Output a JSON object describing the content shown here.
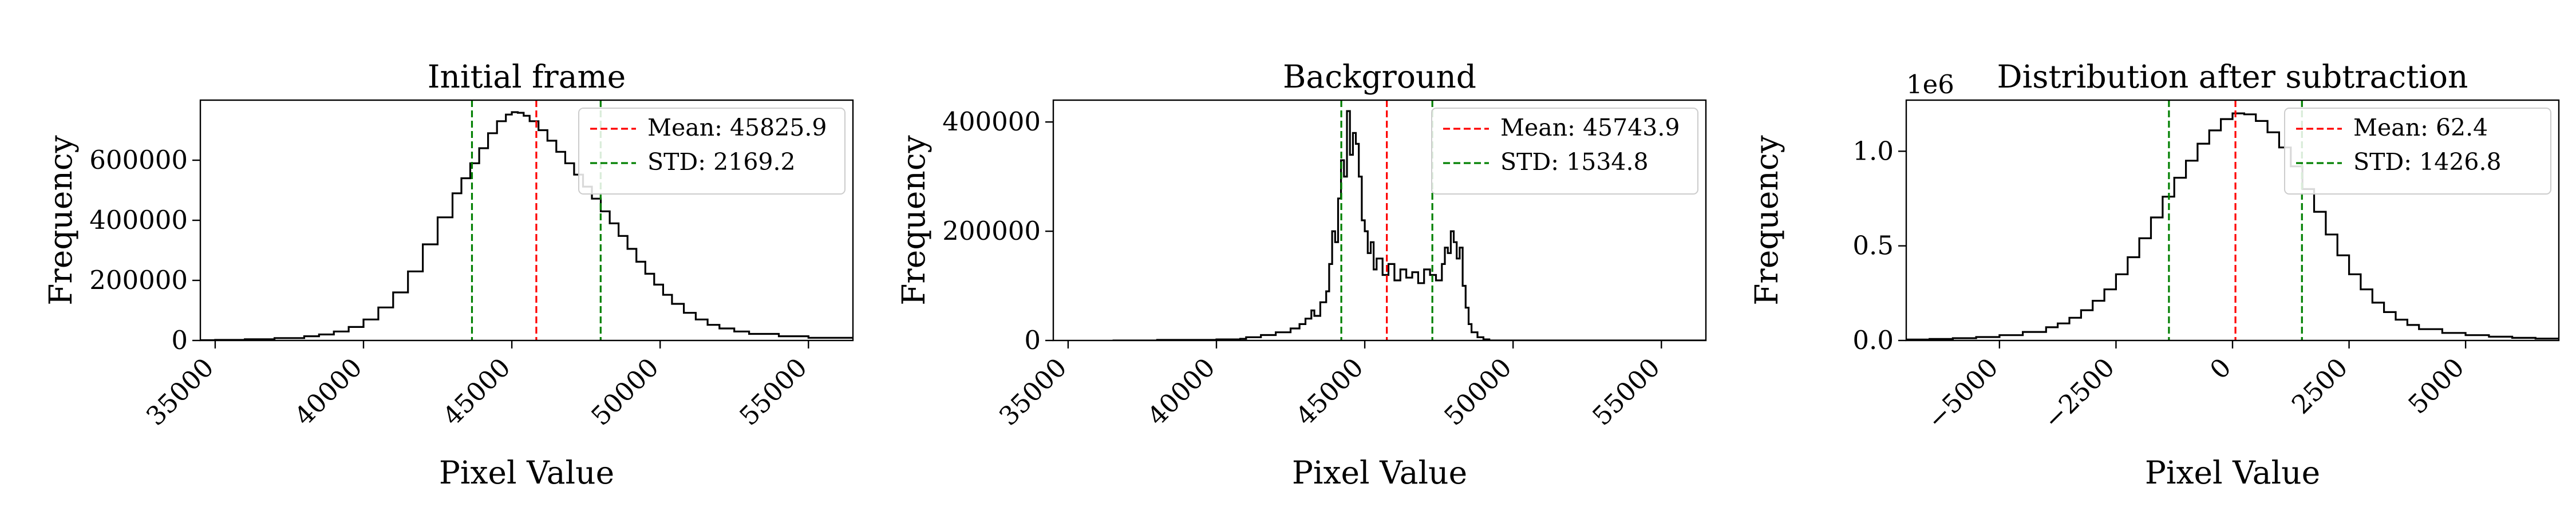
{
  "chart_data": [
    {
      "type": "histogram",
      "title": "Initial frame",
      "xlabel": "Pixel Value",
      "ylabel": "Frequency",
      "xlim": [
        34500,
        56500
      ],
      "ylim": [
        0,
        800000
      ],
      "xticks": [
        35000,
        40000,
        45000,
        50000,
        55000
      ],
      "xtick_labels": [
        "35000",
        "40000",
        "45000",
        "50000",
        "55000"
      ],
      "yticks": [
        0,
        200000,
        400000,
        600000
      ],
      "ytick_labels": [
        "0",
        "200000",
        "400000",
        "600000"
      ],
      "y_offset_label": "",
      "legend_position": "upper-right",
      "lines": [
        {
          "label": "Mean: 45825.9",
          "x": 45825.9,
          "color": "#ff0000"
        },
        {
          "label": "STD: 2169.2",
          "x": [
            43656.7,
            47995.1
          ],
          "color": "#008000"
        }
      ],
      "series": [
        {
          "x": [
            34500,
            35000,
            36000,
            37000,
            38000,
            38500,
            39000,
            39500,
            40000,
            40500,
            41000,
            41500,
            42000,
            42500,
            43000,
            43300,
            43600,
            43900,
            44200,
            44500,
            44800,
            45000,
            45200,
            45400,
            45600,
            45900,
            46200,
            46500,
            46800,
            47100,
            47400,
            47700,
            48000,
            48300,
            48600,
            48900,
            49200,
            49500,
            49800,
            50100,
            50400,
            50800,
            51200,
            51600,
            52000,
            52500,
            53000,
            54000,
            55000,
            56500
          ],
          "y": [
            1000,
            2000,
            4000,
            8000,
            14000,
            20000,
            30000,
            45000,
            70000,
            110000,
            160000,
            230000,
            320000,
            410000,
            490000,
            540000,
            590000,
            640000,
            690000,
            730000,
            752000,
            760000,
            758000,
            748000,
            730000,
            700000,
            665000,
            628000,
            590000,
            552000,
            512000,
            472000,
            430000,
            390000,
            348000,
            305000,
            262000,
            222000,
            186000,
            152000,
            122000,
            92000,
            70000,
            52000,
            40000,
            30000,
            22000,
            14000,
            9000,
            6000
          ]
        }
      ]
    },
    {
      "type": "histogram",
      "title": "Background",
      "xlabel": "Pixel Value",
      "ylabel": "Frequency",
      "xlim": [
        34500,
        56500
      ],
      "ylim": [
        0,
        440000
      ],
      "xticks": [
        35000,
        40000,
        45000,
        50000,
        55000
      ],
      "xtick_labels": [
        "35000",
        "40000",
        "45000",
        "50000",
        "55000"
      ],
      "yticks": [
        0,
        200000,
        400000
      ],
      "ytick_labels": [
        "0",
        "200000",
        "400000"
      ],
      "y_offset_label": "",
      "legend_position": "upper-right",
      "lines": [
        {
          "label": "Mean: 45743.9",
          "x": 45743.9,
          "color": "#ff0000"
        },
        {
          "label": "STD: 1534.8",
          "x": [
            44209.1,
            47278.7
          ],
          "color": "#008000"
        }
      ],
      "series": [
        {
          "x": [
            36500,
            38000,
            40000,
            40800,
            41000,
            41500,
            42000,
            42500,
            42800,
            43000,
            43200,
            43300,
            43500,
            43700,
            43800,
            43900,
            44000,
            44100,
            44200,
            44300,
            44400,
            44500,
            44600,
            44700,
            44800,
            44900,
            45000,
            45100,
            45200,
            45300,
            45400,
            45600,
            45800,
            46000,
            46200,
            46400,
            46600,
            46800,
            47000,
            47200,
            47400,
            47600,
            47700,
            47800,
            47900,
            48000,
            48100,
            48200,
            48300,
            48400,
            48500,
            48600,
            48800,
            49000,
            49200
          ],
          "y": [
            0,
            1000,
            2000,
            3000,
            6000,
            10000,
            15000,
            22000,
            30000,
            40000,
            55000,
            45000,
            70000,
            90000,
            140000,
            200000,
            180000,
            260000,
            330000,
            300000,
            420000,
            340000,
            380000,
            360000,
            300000,
            220000,
            200000,
            160000,
            180000,
            130000,
            150000,
            120000,
            140000,
            110000,
            130000,
            115000,
            125000,
            105000,
            130000,
            120000,
            110000,
            140000,
            170000,
            160000,
            200000,
            180000,
            150000,
            170000,
            100000,
            60000,
            30000,
            15000,
            6000,
            2000,
            0
          ]
        }
      ]
    },
    {
      "type": "histogram",
      "title": "Distribution after subtraction",
      "xlabel": "Pixel Value",
      "ylabel": "Frequency",
      "xlim": [
        -7000,
        7000
      ],
      "ylim": [
        0,
        1270000
      ],
      "xticks": [
        -5000,
        -2500,
        0,
        2500,
        5000
      ],
      "xtick_labels": [
        "−5000",
        "−2500",
        "0",
        "2500",
        "5000"
      ],
      "yticks": [
        0,
        500000,
        1000000
      ],
      "ytick_labels": [
        "0.0",
        "0.5",
        "1.0"
      ],
      "y_offset_label": "1e6",
      "legend_position": "upper-right",
      "lines": [
        {
          "label": "Mean: 62.4",
          "x": 62.4,
          "color": "#ff0000"
        },
        {
          "label": "STD: 1426.8",
          "x": [
            -1364.4,
            1489.2
          ],
          "color": "#008000"
        }
      ],
      "series": [
        {
          "x": [
            -7000,
            -6500,
            -6000,
            -5500,
            -5000,
            -4500,
            -4000,
            -3750,
            -3500,
            -3250,
            -3000,
            -2750,
            -2500,
            -2250,
            -2000,
            -1750,
            -1500,
            -1250,
            -1000,
            -750,
            -500,
            -250,
            0,
            250,
            500,
            750,
            1000,
            1250,
            1500,
            1750,
            2000,
            2250,
            2500,
            2750,
            3000,
            3250,
            3500,
            3750,
            4000,
            4500,
            5000,
            5500,
            6000,
            6500,
            7000
          ],
          "y": [
            5000,
            8000,
            12000,
            18000,
            28000,
            45000,
            70000,
            90000,
            120000,
            160000,
            210000,
            270000,
            350000,
            440000,
            540000,
            650000,
            760000,
            860000,
            950000,
            1040000,
            1110000,
            1170000,
            1200000,
            1195000,
            1160000,
            1100000,
            1020000,
            920000,
            800000,
            680000,
            560000,
            450000,
            350000,
            270000,
            200000,
            150000,
            110000,
            82000,
            60000,
            40000,
            28000,
            20000,
            14000,
            10000,
            8000
          ]
        }
      ]
    }
  ]
}
